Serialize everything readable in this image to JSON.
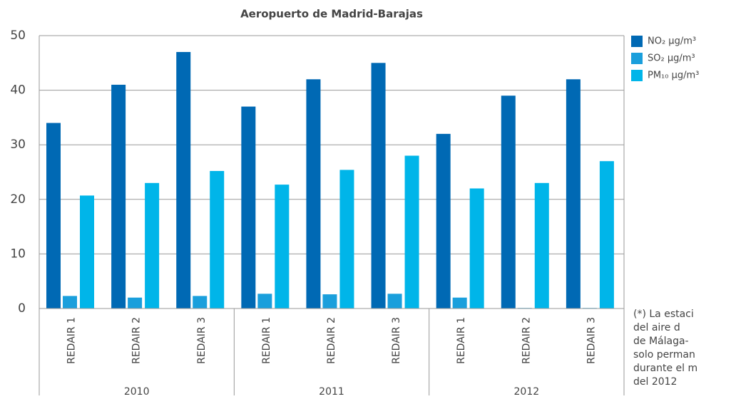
{
  "chart_data": {
    "type": "bar",
    "title": "Aeropuerto de Madrid-Barajas",
    "categories": [
      "REDAIR 1",
      "REDAIR 2",
      "REDAIR 3",
      "REDAIR 1",
      "REDAIR 2",
      "REDAIR 3",
      "REDAIR 1",
      "REDAIR 2",
      "REDAIR 3"
    ],
    "group_labels": [
      "2010",
      "2011",
      "2012"
    ],
    "series": [
      {
        "name": "NO₂ µg/m³",
        "color": "#0069b4",
        "values": [
          34,
          41,
          47,
          37,
          42,
          45,
          32,
          39,
          42
        ]
      },
      {
        "name": "SO₂ µg/m³",
        "color": "#1a9fdc",
        "values": [
          2.3,
          2,
          2.3,
          2.7,
          2.6,
          2.7,
          2,
          0.1,
          0.1
        ]
      },
      {
        "name": "PM₁₀ µg/m³",
        "color": "#00b5e9",
        "values": [
          20.7,
          23,
          25.2,
          22.7,
          25.4,
          28,
          22,
          23,
          27
        ]
      }
    ],
    "ylim": [
      0,
      50
    ],
    "yticks": [
      0,
      10,
      20,
      30,
      40,
      50
    ],
    "grid": true,
    "legend": "right"
  },
  "footnote_lines": [
    "(*) La estaci",
    "del aire d",
    "de Málaga-",
    "solo perman",
    "durante el m",
    "del 2012"
  ]
}
